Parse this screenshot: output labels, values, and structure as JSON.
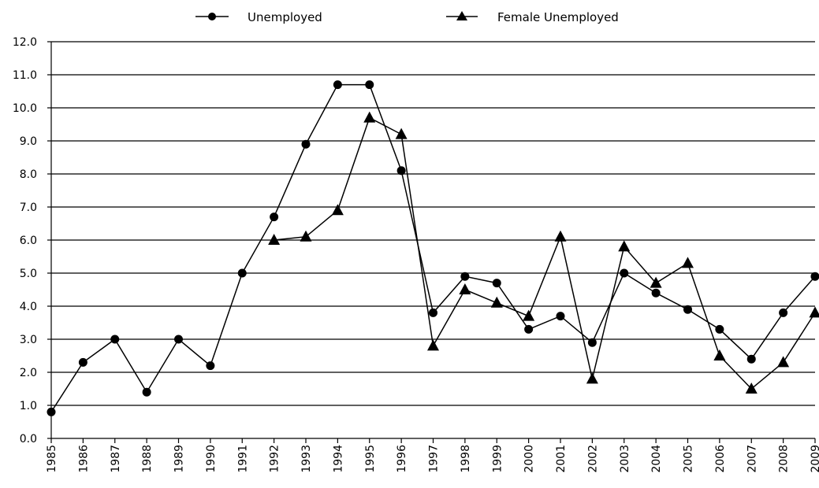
{
  "chart_data": {
    "type": "line",
    "title": "",
    "xlabel": "",
    "ylabel": "",
    "categories": [
      "1985",
      "1986",
      "1987",
      "1988",
      "1989",
      "1990",
      "1991",
      "1992",
      "1993",
      "1994",
      "1995",
      "1996",
      "1997",
      "1998",
      "1999",
      "2000",
      "2001",
      "2002",
      "2003",
      "2004",
      "2005",
      "2006",
      "2007",
      "2008",
      "2009"
    ],
    "yticks": [
      "0.0",
      "1.0",
      "2.0",
      "3.0",
      "4.0",
      "5.0",
      "6.0",
      "7.0",
      "8.0",
      "9.0",
      "10.0",
      "11.0",
      "12.0"
    ],
    "ylim": [
      0,
      12
    ],
    "grid": true,
    "legend_position": "top",
    "series": [
      {
        "name": "Unemployed",
        "marker": "circle",
        "values": [
          0.8,
          2.3,
          3.0,
          1.4,
          3.0,
          2.2,
          5.0,
          6.7,
          8.9,
          10.7,
          10.7,
          8.1,
          3.8,
          4.9,
          4.7,
          3.3,
          3.7,
          2.9,
          5.0,
          4.4,
          3.9,
          3.3,
          2.4,
          3.8,
          4.9
        ]
      },
      {
        "name": "Female Unemployed",
        "marker": "triangle",
        "values": [
          null,
          null,
          null,
          null,
          null,
          null,
          null,
          6.0,
          6.1,
          6.9,
          9.7,
          9.2,
          2.8,
          4.5,
          4.1,
          3.7,
          6.1,
          1.8,
          5.8,
          4.7,
          5.3,
          2.5,
          1.5,
          2.3,
          3.8
        ]
      }
    ]
  }
}
